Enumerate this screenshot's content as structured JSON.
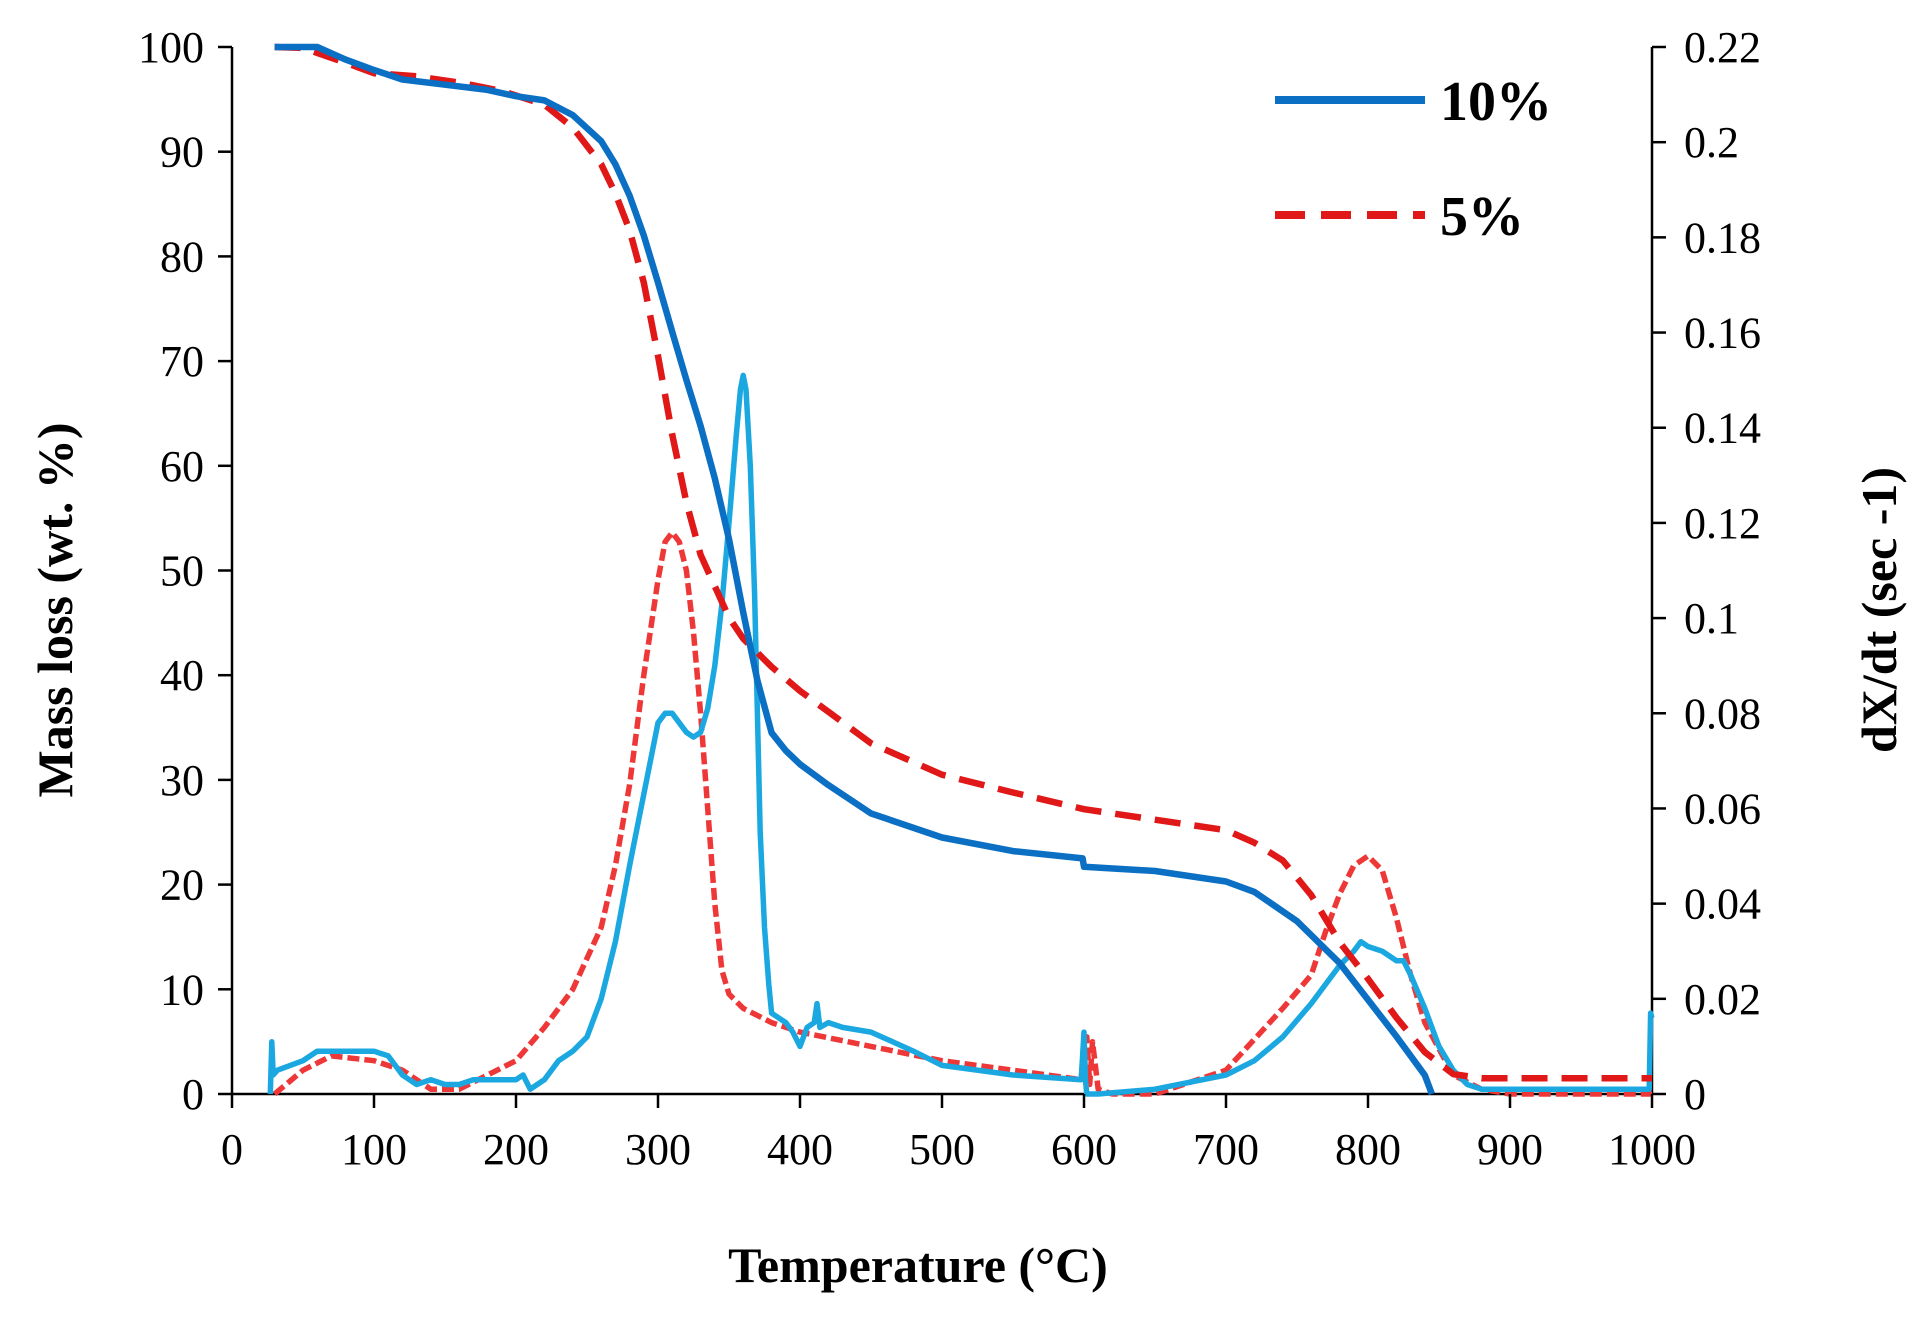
{
  "chart_data": {
    "type": "line",
    "title": "",
    "xlabel": "Temperature (°C)",
    "ylabel": "Mass loss (wt. %)",
    "y2label": "dX/dt (sec -1)",
    "xlim": [
      0,
      1000
    ],
    "ylim": [
      0,
      100
    ],
    "y2lim": [
      0,
      0.22
    ],
    "grid": false,
    "legend_position": "top-right",
    "x_ticks": [
      "0",
      "100",
      "200",
      "300",
      "400",
      "500",
      "600",
      "700",
      "800",
      "900",
      "1000"
    ],
    "y_ticks": [
      "0",
      "10",
      "20",
      "30",
      "40",
      "50",
      "60",
      "70",
      "80",
      "90",
      "100"
    ],
    "y2_ticks": [
      "0",
      "0.02",
      "0.04",
      "0.06",
      "0.08",
      "0.1",
      "0.12",
      "0.14",
      "0.16",
      "0.18",
      "0.2",
      "0.22"
    ],
    "colors": {
      "mass_10": "#0b6fc4",
      "dtg_10": "#1ba8e0",
      "mass_5": "#e01818",
      "dtg_5": "#ee3838"
    },
    "legend": [
      {
        "label": "10%",
        "style": "solid",
        "color": "#0b6fc4"
      },
      {
        "label": "5%",
        "style": "dashed",
        "color": "#e01818"
      }
    ],
    "series": [
      {
        "name": "10% mass loss",
        "axis": "left",
        "style": "solid",
        "color": "#0b6fc4",
        "x": [
          30,
          60,
          80,
          100,
          120,
          150,
          180,
          200,
          220,
          240,
          260,
          270,
          280,
          290,
          300,
          310,
          320,
          330,
          340,
          350,
          360,
          370,
          375,
          380,
          390,
          400,
          420,
          450,
          500,
          550,
          599,
          600,
          650,
          700,
          720,
          750,
          780,
          800,
          820,
          840,
          845
        ],
        "y": [
          100,
          100,
          98.8,
          97.8,
          96.9,
          96.4,
          95.9,
          95.3,
          94.9,
          93.5,
          91,
          88.8,
          85.8,
          82,
          77.5,
          72.8,
          68.2,
          63.8,
          58.8,
          53,
          46,
          39.5,
          37,
          34.5,
          32.8,
          31.5,
          29.5,
          26.8,
          24.5,
          23.2,
          22.5,
          21.7,
          21.3,
          20.3,
          19.3,
          16.5,
          12.5,
          9,
          5.5,
          1.8,
          0
        ]
      },
      {
        "name": "5% mass loss",
        "axis": "left",
        "style": "dashed",
        "color": "#e01818",
        "x": [
          30,
          50,
          80,
          100,
          130,
          160,
          190,
          220,
          240,
          260,
          270,
          280,
          290,
          300,
          310,
          320,
          330,
          340,
          350,
          360,
          380,
          400,
          420,
          450,
          500,
          550,
          600,
          650,
          700,
          720,
          740,
          760,
          780,
          800,
          820,
          840,
          860,
          880,
          900,
          1000
        ],
        "y": [
          100,
          99.9,
          98.5,
          97.5,
          97.2,
          96.6,
          95.8,
          94.5,
          92.3,
          88.8,
          86,
          82.5,
          77.5,
          70.5,
          63,
          56.5,
          51.5,
          48.5,
          45.5,
          43.5,
          40.8,
          38.5,
          36.5,
          33.5,
          30.5,
          28.8,
          27.2,
          26.2,
          25.2,
          24,
          22.3,
          19,
          14.5,
          11,
          7.3,
          4,
          1.9,
          1.5,
          1.5,
          1.5
        ]
      },
      {
        "name": "10% dX/dt",
        "axis": "right",
        "style": "solid",
        "color": "#1ba8e0",
        "x": [
          27,
          28,
          29,
          32,
          50,
          60,
          80,
          100,
          110,
          120,
          130,
          140,
          150,
          160,
          170,
          180,
          200,
          205,
          210,
          220,
          230,
          240,
          250,
          260,
          270,
          280,
          290,
          300,
          305,
          310,
          315,
          320,
          325,
          330,
          335,
          340,
          345,
          350,
          355,
          358,
          360,
          362,
          365,
          368,
          370,
          372,
          375,
          378,
          380,
          385,
          390,
          395,
          400,
          405,
          410,
          412,
          414,
          420,
          430,
          450,
          480,
          500,
          550,
          598,
          600,
          601,
          602,
          610,
          650,
          700,
          720,
          740,
          760,
          780,
          790,
          795,
          800,
          810,
          820,
          825,
          830,
          840,
          850,
          860,
          870,
          880,
          900,
          950,
          990,
          998,
          999,
          1000
        ],
        "y": [
          0,
          0.011,
          0.004,
          0.005,
          0.007,
          0.009,
          0.009,
          0.009,
          0.008,
          0.004,
          0.002,
          0.003,
          0.002,
          0.002,
          0.003,
          0.003,
          0.003,
          0.004,
          0.001,
          0.003,
          0.007,
          0.009,
          0.012,
          0.02,
          0.032,
          0.048,
          0.063,
          0.078,
          0.08,
          0.08,
          0.078,
          0.076,
          0.075,
          0.076,
          0.081,
          0.09,
          0.103,
          0.12,
          0.138,
          0.148,
          0.151,
          0.148,
          0.132,
          0.105,
          0.08,
          0.055,
          0.035,
          0.023,
          0.017,
          0.016,
          0.015,
          0.013,
          0.01,
          0.014,
          0.015,
          0.019,
          0.014,
          0.015,
          0.014,
          0.013,
          0.009,
          0.006,
          0.004,
          0.003,
          0.013,
          0.003,
          0,
          0,
          0.001,
          0.004,
          0.007,
          0.012,
          0.019,
          0.027,
          0.03,
          0.032,
          0.031,
          0.03,
          0.028,
          0.028,
          0.025,
          0.018,
          0.01,
          0.005,
          0.002,
          0.001,
          0.001,
          0.001,
          0.001,
          0.001,
          0.017,
          0.016
        ]
      },
      {
        "name": "5% dX/dt",
        "axis": "right",
        "style": "dashed",
        "color": "#ee3838",
        "x": [
          30,
          50,
          70,
          100,
          120,
          140,
          160,
          180,
          200,
          220,
          240,
          260,
          270,
          280,
          290,
          300,
          305,
          310,
          315,
          320,
          325,
          330,
          335,
          340,
          345,
          350,
          360,
          380,
          400,
          450,
          500,
          550,
          598,
          600,
          601,
          602,
          604,
          606,
          610,
          620,
          650,
          700,
          740,
          760,
          770,
          780,
          790,
          800,
          810,
          820,
          830,
          840,
          860,
          880,
          900,
          1000
        ],
        "y": [
          0,
          0.005,
          0.008,
          0.007,
          0.005,
          0.001,
          0.001,
          0.004,
          0.007,
          0.014,
          0.022,
          0.035,
          0.048,
          0.065,
          0.088,
          0.108,
          0.116,
          0.118,
          0.116,
          0.11,
          0.097,
          0.08,
          0.06,
          0.04,
          0.026,
          0.021,
          0.018,
          0.015,
          0.013,
          0.01,
          0.007,
          0.005,
          0.003,
          0.011,
          0.004,
          0.012,
          0.002,
          0.011,
          0.001,
          0,
          0,
          0.005,
          0.018,
          0.025,
          0.034,
          0.042,
          0.048,
          0.05,
          0.047,
          0.037,
          0.025,
          0.015,
          0.004,
          0.001,
          0,
          0
        ]
      }
    ]
  }
}
